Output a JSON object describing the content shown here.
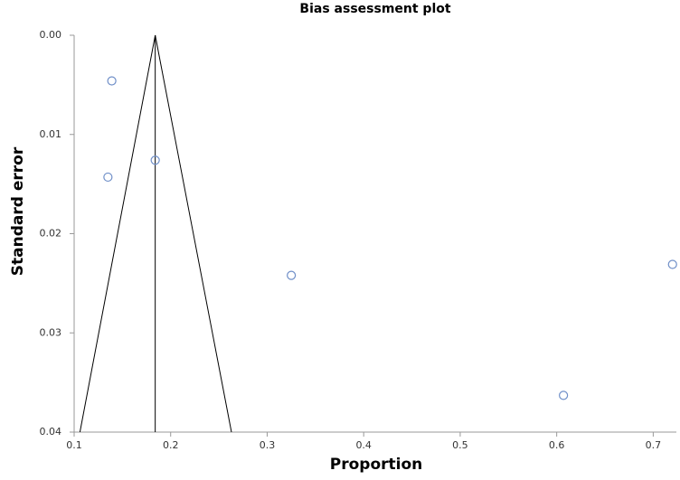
{
  "chart_data": {
    "type": "scatter",
    "title": "Bias assessment plot",
    "x_label": "Proportion",
    "y_label": "Standard error",
    "y_inverted": true,
    "xlim": [
      0.1,
      0.724
    ],
    "ylim": [
      0,
      0.04
    ],
    "xticks": [
      0.1,
      0.2,
      0.3,
      0.4,
      0.5,
      0.6,
      0.7
    ],
    "yticks": [
      {
        "value": 0,
        "label": "0.00"
      },
      0.01,
      0.02,
      0.03,
      0.04
    ],
    "series": [
      {
        "color": "#6f8fc8",
        "x": [
          0.139,
          0.184,
          0.135,
          0.325,
          0.72,
          0.607
        ],
        "values": [
          0.0046,
          0.0126,
          0.0143,
          0.0242,
          0.0231,
          0.0363
        ]
      }
    ],
    "reference_line": {
      "x": [
        0.184,
        0.184
      ],
      "y": [
        0,
        0.04
      ]
    },
    "funnel": {
      "x": [
        0.106,
        0.184,
        0.263
      ],
      "y": [
        0.04,
        0,
        0.04
      ]
    }
  }
}
